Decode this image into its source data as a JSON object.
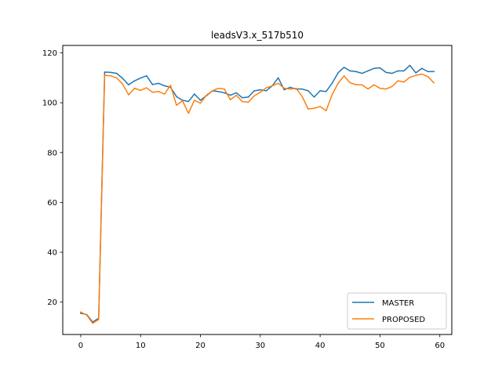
{
  "chart_data": {
    "type": "line",
    "title": "leadsV3.x_517b510",
    "xlabel": "",
    "ylabel": "",
    "xlim": [
      -3,
      62
    ],
    "ylim": [
      7,
      123
    ],
    "xticks": [
      0,
      10,
      20,
      30,
      40,
      50,
      60
    ],
    "yticks": [
      20,
      40,
      60,
      80,
      100,
      120
    ],
    "grid": false,
    "legend_position": "lower-right",
    "x": [
      0,
      1,
      2,
      3,
      4,
      5,
      6,
      7,
      8,
      9,
      10,
      11,
      12,
      13,
      14,
      15,
      16,
      17,
      18,
      19,
      20,
      21,
      22,
      23,
      24,
      25,
      26,
      27,
      28,
      29,
      30,
      31,
      32,
      33,
      34,
      35,
      36,
      37,
      38,
      39,
      40,
      41,
      42,
      43,
      44,
      45,
      46,
      47,
      48,
      49,
      50,
      51,
      52,
      53,
      54,
      55,
      56,
      57,
      58,
      59
    ],
    "series": [
      {
        "name": "MASTER",
        "color": "#1f77b4",
        "values": [
          15.5,
          15.0,
          12.0,
          13.5,
          112.3,
          112.2,
          111.8,
          109.8,
          107.2,
          108.8,
          109.9,
          110.8,
          107.3,
          107.8,
          106.8,
          106.2,
          102.5,
          101.0,
          100.5,
          103.5,
          101.0,
          102.8,
          104.8,
          104.5,
          104.0,
          103.0,
          104.0,
          102.0,
          102.3,
          104.8,
          105.2,
          104.8,
          106.8,
          110.0,
          105.2,
          106.2,
          105.5,
          105.5,
          104.8,
          102.3,
          104.8,
          104.5,
          107.8,
          112.0,
          114.2,
          112.8,
          112.5,
          111.8,
          112.8,
          113.8,
          114.0,
          112.2,
          111.8,
          112.8,
          112.8,
          115.0,
          112.0,
          113.8,
          112.5,
          112.5
        ]
      },
      {
        "name": "PROPOSED",
        "color": "#ff7f0e",
        "values": [
          16.0,
          14.8,
          11.5,
          13.0,
          111.0,
          110.8,
          110.0,
          107.5,
          103.2,
          105.8,
          105.0,
          106.0,
          104.2,
          104.5,
          103.5,
          107.0,
          99.0,
          100.8,
          95.8,
          101.0,
          99.8,
          103.0,
          104.8,
          105.8,
          105.5,
          101.2,
          103.0,
          100.5,
          100.2,
          102.8,
          104.2,
          106.0,
          106.8,
          107.8,
          105.8,
          105.5,
          105.8,
          102.5,
          97.5,
          97.8,
          98.5,
          96.8,
          103.2,
          107.8,
          110.8,
          108.0,
          107.2,
          107.2,
          105.5,
          107.2,
          105.8,
          105.5,
          106.5,
          108.8,
          108.3,
          110.2,
          111.0,
          111.5,
          110.5,
          108.0
        ]
      }
    ]
  }
}
